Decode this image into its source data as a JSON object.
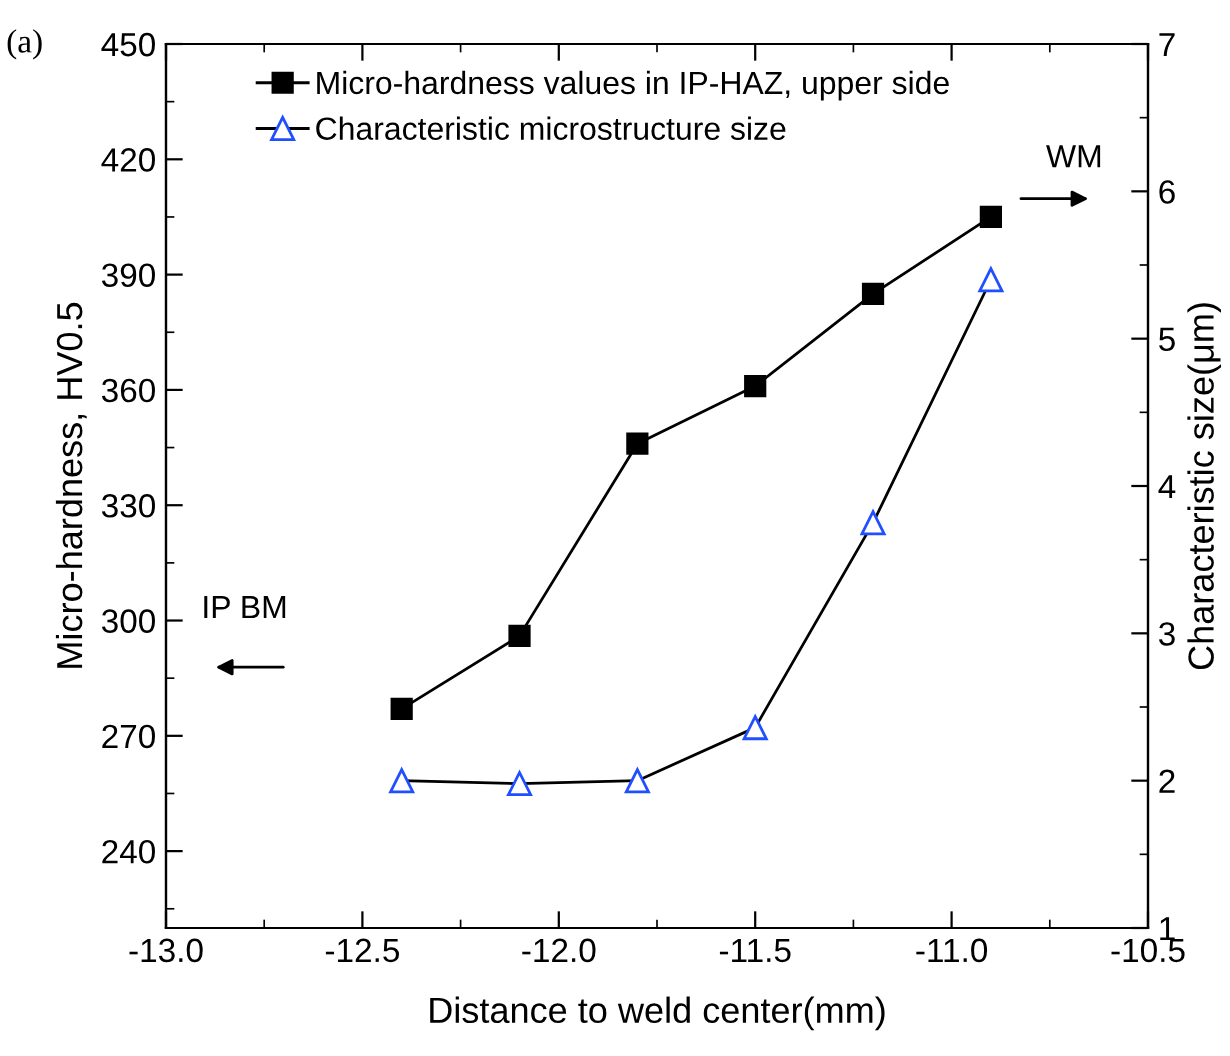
{
  "chart_data": {
    "type": "line",
    "xlabel": "Distance to weld center(mm)",
    "ylabel": "Micro-hardness, HV0.5",
    "y2label": "Characteristic size(μm)",
    "x": [
      -12.4,
      -12.1,
      -11.8,
      -11.5,
      -11.2,
      -10.9
    ],
    "series": [
      {
        "name": "Micro-hardness values in IP-HAZ, upper side",
        "color": "#000000",
        "marker": "square",
        "values": [
          277,
          296,
          346,
          361,
          385,
          405
        ]
      },
      {
        "name": "Characteristic microstructure size",
        "color": "#1f4fff",
        "marker": "triangle",
        "axis": "y2",
        "values": [
          2.0,
          1.98,
          2.0,
          2.36,
          3.75,
          5.4
        ]
      }
    ],
    "xlim": [
      -13.0,
      -10.5
    ],
    "xticks": [
      {
        "value": -13.0,
        "label": "-13.0"
      },
      {
        "value": -12.5,
        "label": "-12.5"
      },
      {
        "value": -12.0,
        "label": "-12.0"
      },
      {
        "value": -11.5,
        "label": "-11.5"
      },
      {
        "value": -11.0,
        "label": "-11.0"
      },
      {
        "value": -10.5,
        "label": "-10.5"
      }
    ],
    "ylim": [
      220,
      450
    ],
    "yticks": [
      240,
      270,
      300,
      330,
      360,
      390,
      420,
      450
    ],
    "y2lim": [
      1,
      7
    ],
    "y2ticks": [
      1,
      2,
      3,
      4,
      5,
      6,
      7
    ],
    "annotations": [
      "(a)",
      "WM",
      "IP BM"
    ],
    "legend": "top left",
    "grid": false
  }
}
